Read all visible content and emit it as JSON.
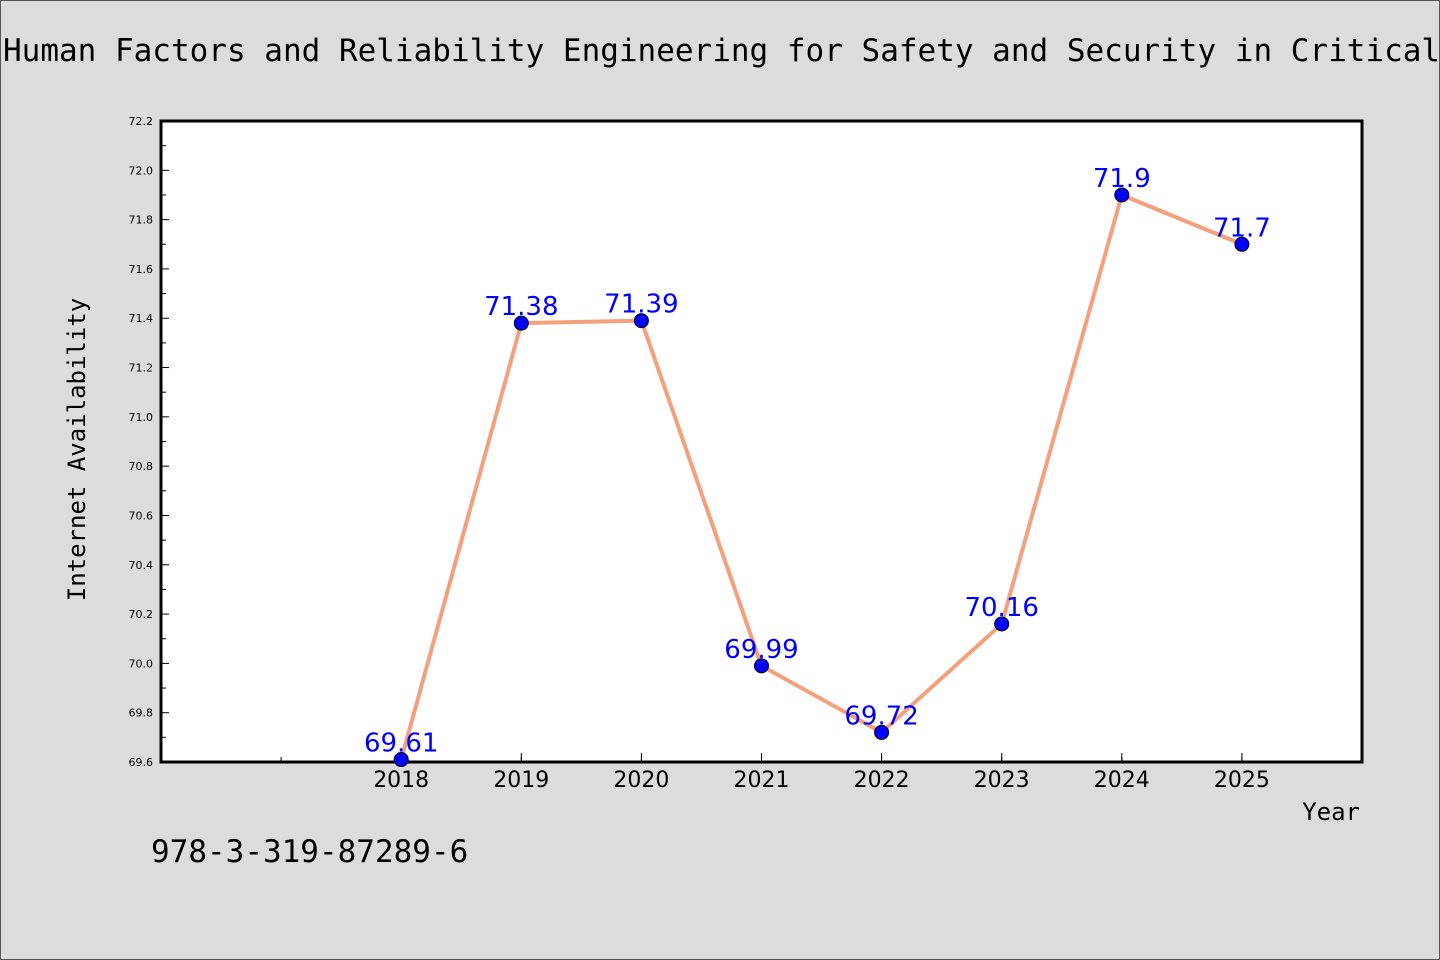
{
  "title": "Human Factors and Reliability Engineering for Safety and Security in Critical In",
  "footer_text": "978-3-319-87289-6",
  "chart_data": {
    "type": "line",
    "title": "Human Factors and Reliability Engineering for Safety and Security in Critical In",
    "xlabel": "Year",
    "ylabel": "Internet Availability",
    "x": [
      2018,
      2019,
      2020,
      2021,
      2022,
      2023,
      2024,
      2025
    ],
    "x_tick_labels": [
      "2018",
      "2019",
      "2020",
      "2021",
      "2022",
      "2023",
      "2024",
      "2025"
    ],
    "xlim": [
      2016,
      2026
    ],
    "y_ticks": [
      "69.6",
      "69.8",
      "70.0",
      "70.2",
      "70.4",
      "70.6",
      "70.8",
      "71.0",
      "71.2",
      "71.4",
      "71.6",
      "71.8",
      "72.0",
      "72.2"
    ],
    "ylim": [
      69.6,
      72.2
    ],
    "series": [
      {
        "values": [
          69.61,
          71.38,
          71.39,
          69.99,
          69.72,
          70.16,
          71.9,
          71.7
        ],
        "data_labels": [
          "69.61",
          "71.38",
          "71.39",
          "69.99",
          "69.72",
          "70.16",
          "71.9",
          "71.7"
        ]
      }
    ],
    "grid": false,
    "legend": "none",
    "colors": {
      "line": "#f4a07c",
      "marker": "#0000ff",
      "label": "#0000ff"
    }
  }
}
